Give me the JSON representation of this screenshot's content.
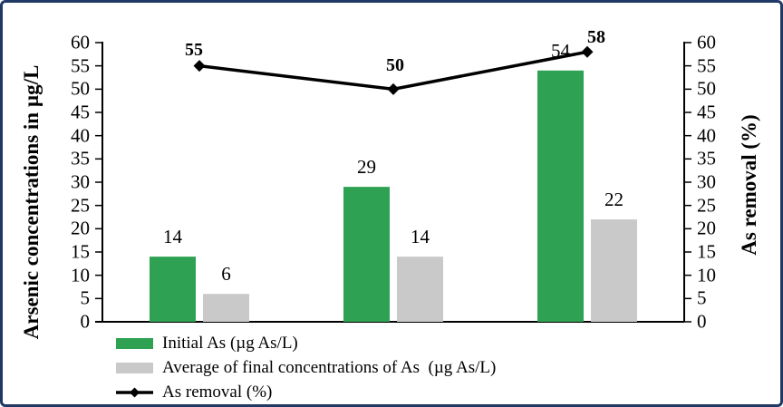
{
  "frame": {
    "border_color": "#1F3864",
    "background_color": "#FFFFFF"
  },
  "chart_data": {
    "type": "bar+line",
    "categories": [
      "",
      "",
      ""
    ],
    "series": [
      {
        "name": "Initial As (µg As/L)",
        "type": "bar",
        "color": "#2EA152",
        "values": [
          14,
          29,
          54
        ],
        "data_labels": [
          "14",
          "29",
          "54"
        ]
      },
      {
        "name": "Average of final concentrations of As  (µg As/L)",
        "type": "bar",
        "color": "#C9C9C9",
        "values": [
          6,
          14,
          22
        ],
        "data_labels": [
          "6",
          "14",
          "22"
        ]
      },
      {
        "name": "As removal (%)",
        "type": "line",
        "color": "#000000",
        "marker": "diamond",
        "values": [
          55,
          50,
          58
        ],
        "data_labels": [
          "55",
          "50",
          "58"
        ]
      }
    ],
    "left_axis": {
      "title": "Arsenic concentrations in µg/L",
      "min": 0,
      "max": 60,
      "step": 5
    },
    "right_axis": {
      "title": "As removal (%)",
      "min": 0,
      "max": 60,
      "step": 5
    },
    "x_axis": {
      "tick_labels_visible": false
    },
    "grid": false,
    "legend_position": "bottom-left",
    "axis_color": "#000000",
    "text_color": "#000000"
  }
}
